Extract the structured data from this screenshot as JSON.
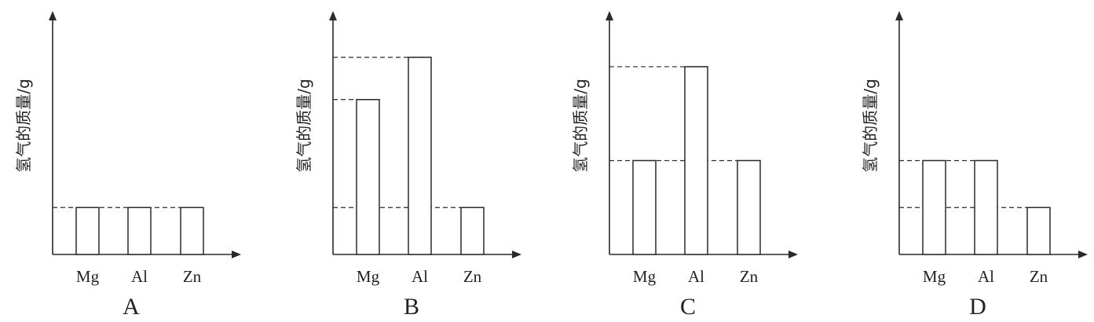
{
  "chart_data": [
    {
      "type": "bar",
      "panel_label": "A",
      "ylabel": "氢气的质量/g",
      "categories": [
        "Mg",
        "Al",
        "Zn"
      ],
      "values": [
        1,
        1,
        1
      ],
      "reference_lines": [
        1
      ],
      "ylim": [
        0,
        4.2
      ]
    },
    {
      "type": "bar",
      "panel_label": "B",
      "ylabel": "氢气的质量/g",
      "categories": [
        "Mg",
        "Al",
        "Zn"
      ],
      "values": [
        3.3,
        4.2,
        1
      ],
      "reference_lines": [
        4.2,
        3.3,
        1
      ],
      "ylim": [
        0,
        4.2
      ]
    },
    {
      "type": "bar",
      "panel_label": "C",
      "ylabel": "氢气的质量/g",
      "categories": [
        "Mg",
        "Al",
        "Zn"
      ],
      "values": [
        2,
        4,
        2
      ],
      "reference_lines": [
        4,
        2
      ],
      "ylim": [
        0,
        4.2
      ]
    },
    {
      "type": "bar",
      "panel_label": "D",
      "ylabel": "氢气的质量/g",
      "categories": [
        "Mg",
        "Al",
        "Zn"
      ],
      "values": [
        2,
        2,
        1
      ],
      "reference_lines": [
        2,
        1
      ],
      "ylim": [
        0,
        4.2
      ]
    }
  ]
}
